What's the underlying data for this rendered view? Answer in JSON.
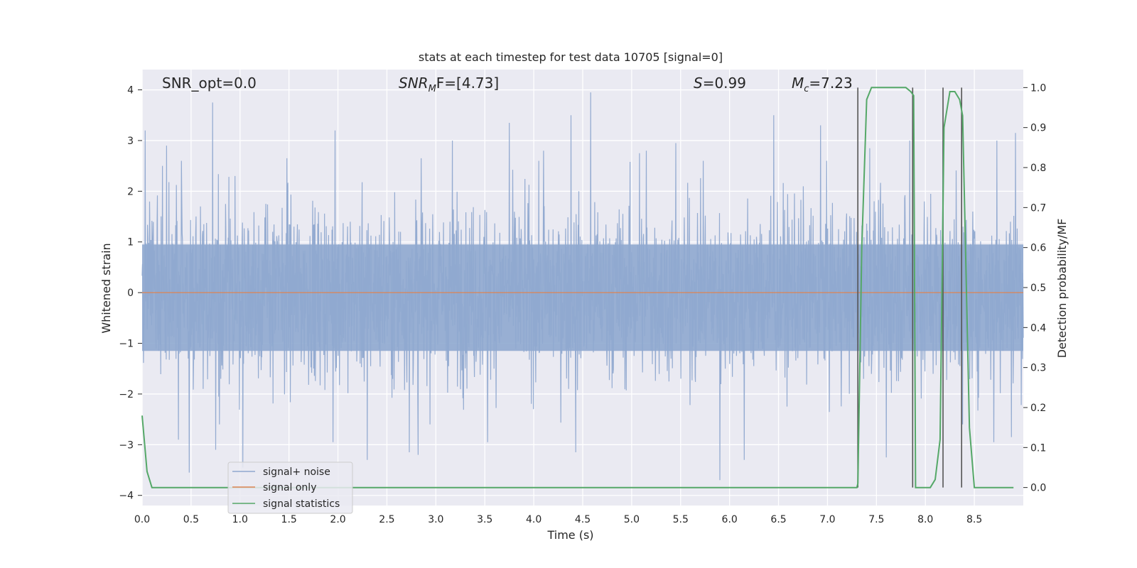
{
  "chart_data": {
    "type": "line",
    "title": "stats at each timestep for test data 10705 [signal=0]",
    "xlabel": "Time (s)",
    "ylabel": "Whitened strain",
    "y2label": "Detection probability/MF",
    "xlim": [
      0.0,
      9.0
    ],
    "ylim": [
      -4.2,
      4.4
    ],
    "y2lim": [
      -0.045,
      1.045
    ],
    "xticks": [
      "0.0",
      "0.5",
      "1.0",
      "1.5",
      "2.0",
      "2.5",
      "3.0",
      "3.5",
      "4.0",
      "4.5",
      "5.0",
      "5.5",
      "6.0",
      "6.5",
      "7.0",
      "7.5",
      "8.0",
      "8.5"
    ],
    "xtick_values": [
      0.0,
      0.5,
      1.0,
      1.5,
      2.0,
      2.5,
      3.0,
      3.5,
      4.0,
      4.5,
      5.0,
      5.5,
      6.0,
      6.5,
      7.0,
      7.5,
      8.0,
      8.5
    ],
    "yticks": [
      "−4",
      "−3",
      "−2",
      "−1",
      "0",
      "1",
      "2",
      "3",
      "4"
    ],
    "ytick_values": [
      -4,
      -3,
      -2,
      -1,
      0,
      1,
      2,
      3,
      4
    ],
    "y2ticks": [
      "0.0",
      "0.1",
      "0.2",
      "0.3",
      "0.4",
      "0.5",
      "0.6",
      "0.7",
      "0.8",
      "0.9",
      "1.0"
    ],
    "y2tick_values": [
      0.0,
      0.1,
      0.2,
      0.3,
      0.4,
      0.5,
      0.6,
      0.7,
      0.8,
      0.9,
      1.0
    ],
    "grid": true,
    "legend_position": "lower-left",
    "annotations": {
      "snr_opt": "SNR_opt=0.0",
      "snr_mf_main": "SNR",
      "snr_mf_sub": "M",
      "snr_mf_tail": "F=[4.73]",
      "s_main": "S",
      "s_tail": "=0.99",
      "mc_main": "M",
      "mc_sub": "c",
      "mc_tail": "=7.23"
    },
    "series": [
      {
        "name": "signal+ noise",
        "axis": "left",
        "color": "#8fa8cf",
        "style": "dense-noise",
        "x_range": [
          0.0,
          9.0
        ],
        "typical_amplitude": 1.3,
        "peaks": [
          [
            0.03,
            3.2
          ],
          [
            0.25,
            2.9
          ],
          [
            0.4,
            2.6
          ],
          [
            0.72,
            3.75
          ],
          [
            0.95,
            2.3
          ],
          [
            1.48,
            2.65
          ],
          [
            1.97,
            3.2
          ],
          [
            2.85,
            2.65
          ],
          [
            3.17,
            3.0
          ],
          [
            3.75,
            3.35
          ],
          [
            4.1,
            2.8
          ],
          [
            4.38,
            3.5
          ],
          [
            4.58,
            3.95
          ],
          [
            5.08,
            2.75
          ],
          [
            5.15,
            2.8
          ],
          [
            5.45,
            2.95
          ],
          [
            5.73,
            2.6
          ],
          [
            6.15,
            3.35
          ],
          [
            6.45,
            3.5
          ],
          [
            6.93,
            3.3
          ],
          [
            7.43,
            2.85
          ],
          [
            7.84,
            3.0
          ],
          [
            8.18,
            3.0
          ],
          [
            8.73,
            3.0
          ],
          [
            8.92,
            3.15
          ]
        ],
        "troughs": [
          [
            0.37,
            -2.9
          ],
          [
            0.48,
            -3.55
          ],
          [
            0.75,
            -3.1
          ],
          [
            1.03,
            -3.45
          ],
          [
            1.95,
            -2.95
          ],
          [
            2.3,
            -3.3
          ],
          [
            2.73,
            -3.15
          ],
          [
            2.82,
            -3.2
          ],
          [
            3.53,
            -2.95
          ],
          [
            4.43,
            -3.15
          ],
          [
            5.9,
            -3.7
          ],
          [
            6.15,
            -3.3
          ],
          [
            7.6,
            -3.25
          ],
          [
            8.38,
            -2.6
          ],
          [
            8.7,
            -2.95
          ],
          [
            8.88,
            -2.85
          ]
        ]
      },
      {
        "name": "signal only",
        "axis": "left",
        "color": "#dd8452",
        "x": [
          0.0,
          9.0
        ],
        "y": [
          0.0,
          0.0
        ]
      },
      {
        "name": "signal statistics",
        "axis": "right",
        "color": "#55a868",
        "x": [
          0.0,
          0.05,
          0.1,
          0.15,
          7.3,
          7.31,
          7.35,
          7.4,
          7.45,
          7.8,
          7.85,
          7.88,
          7.9,
          7.95,
          8.0,
          8.05,
          8.1,
          8.15,
          8.19,
          8.25,
          8.3,
          8.35,
          8.38,
          8.45,
          8.5,
          8.9
        ],
        "y": [
          0.18,
          0.04,
          0.0,
          0.0,
          0.0,
          0.01,
          0.6,
          0.97,
          1.0,
          1.0,
          0.99,
          0.98,
          0.0,
          0.0,
          0.0,
          0.0,
          0.02,
          0.12,
          0.9,
          0.99,
          0.99,
          0.97,
          0.93,
          0.15,
          0.0,
          0.0
        ]
      }
    ],
    "vlines": {
      "color": "#555555",
      "x": [
        7.31,
        7.87,
        8.18,
        8.37
      ],
      "y2_range": [
        0.0,
        1.0
      ]
    }
  }
}
